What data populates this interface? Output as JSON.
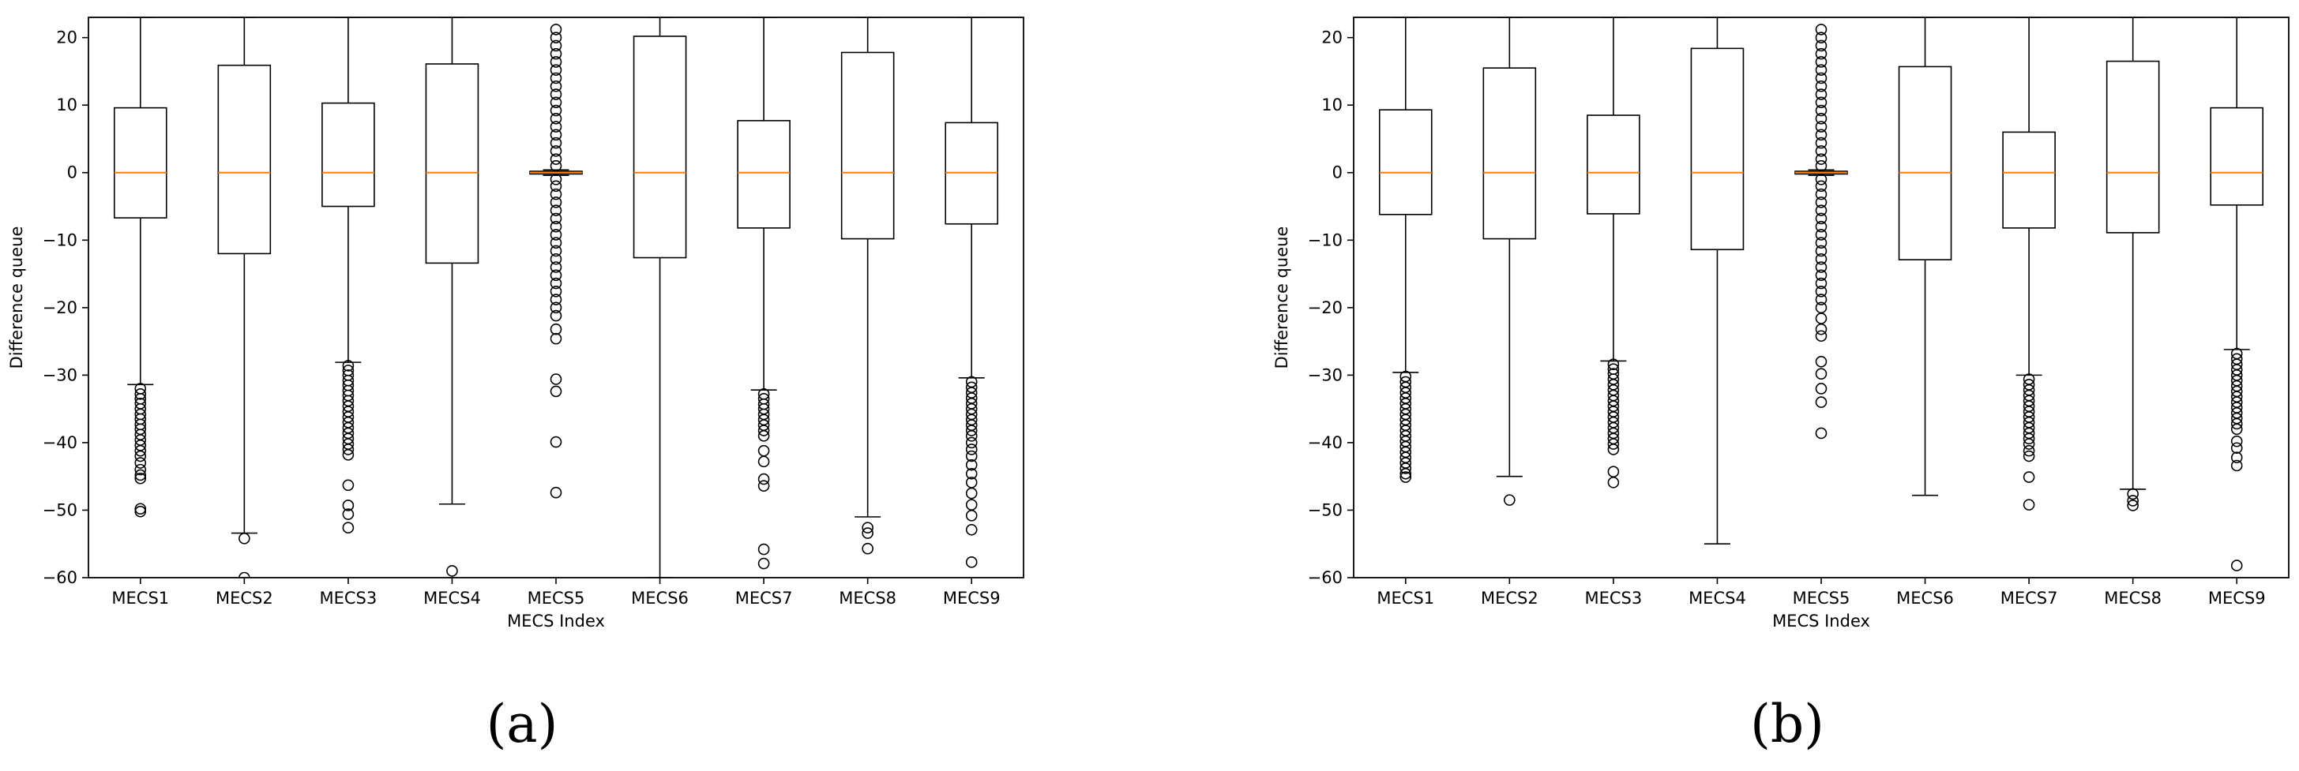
{
  "figure": {
    "panel_labels": [
      "(a)",
      "(b)"
    ]
  },
  "chart_data": [
    {
      "type": "boxplot",
      "panel": "(a)",
      "xlabel": "MECS Index",
      "ylabel": "Difference queue",
      "ylim": [
        -60,
        23
      ],
      "yticks": [
        20,
        10,
        0,
        -10,
        -20,
        -30,
        -40,
        -50,
        -60
      ],
      "categories": [
        "MECS1",
        "MECS2",
        "MECS3",
        "MECS4",
        "MECS5",
        "MECS6",
        "MECS7",
        "MECS8",
        "MECS9"
      ],
      "boxes": [
        {
          "label": "MECS1",
          "q1": -6.7,
          "median": 0,
          "q3": 9.6,
          "whisker_low": -31.4,
          "whisker_high": 23,
          "outliers": [
            -32,
            -32.8,
            -33.5,
            -34.2,
            -35,
            -35.8,
            -36.5,
            -37.3,
            -38,
            -38.8,
            -39.6,
            -40.4,
            -41.2,
            -42,
            -43,
            -44,
            -44.8,
            -45.3,
            -49.8,
            -50.2
          ]
        },
        {
          "label": "MECS2",
          "q1": -12,
          "median": 0,
          "q3": 15.9,
          "whisker_low": -53.4,
          "whisker_high": 23,
          "outliers": [
            -54.2,
            -60
          ]
        },
        {
          "label": "MECS3",
          "q1": -5,
          "median": 0,
          "q3": 10.3,
          "whisker_low": -28.1,
          "whisker_high": 23,
          "outliers": [
            -28.6,
            -29.3,
            -30,
            -30.8,
            -31.5,
            -32.3,
            -33,
            -33.8,
            -34.6,
            -35.4,
            -36.2,
            -37,
            -37.8,
            -38.6,
            -39.4,
            -40.2,
            -41,
            -41.8,
            -46.3,
            -49.3,
            -50.6,
            -52.6
          ]
        },
        {
          "label": "MECS4",
          "q1": -13.4,
          "median": 0,
          "q3": 16.1,
          "whisker_low": -49.1,
          "whisker_high": 23,
          "outliers": [
            -59
          ]
        },
        {
          "label": "MECS5",
          "q1": -0.2,
          "median": 0,
          "q3": 0.2,
          "whisker_low": -0.4,
          "whisker_high": 0.4,
          "outliers": [
            21.2,
            20,
            18.8,
            17.6,
            16.4,
            15.2,
            14,
            12.8,
            11.6,
            10.4,
            9.2,
            8,
            6.8,
            5.6,
            4.4,
            3.2,
            2,
            1,
            -1,
            -2,
            -3.2,
            -4.4,
            -5.6,
            -6.8,
            -8,
            -9.2,
            -10.4,
            -11.6,
            -12.8,
            -14,
            -15.2,
            -16.4,
            -17.6,
            -18.8,
            -20,
            -21.2,
            -23.2,
            -24.6,
            -30.6,
            -32.4,
            -39.9,
            -47.4
          ]
        },
        {
          "label": "MECS6",
          "q1": -12.6,
          "median": 0,
          "q3": 20.2,
          "whisker_low": -60,
          "whisker_high": 23,
          "outliers": []
        },
        {
          "label": "MECS7",
          "q1": -8.2,
          "median": 0,
          "q3": 7.7,
          "whisker_low": -32.2,
          "whisker_high": 23,
          "outliers": [
            -32.8,
            -33.5,
            -34.3,
            -35,
            -35.8,
            -36.6,
            -37.4,
            -38.2,
            -39,
            -41.2,
            -42.8,
            -45.4,
            -46.4,
            -55.8,
            -57.9
          ]
        },
        {
          "label": "MECS8",
          "q1": -9.8,
          "median": 0,
          "q3": 17.8,
          "whisker_low": -51,
          "whisker_high": 23,
          "outliers": [
            -52.6,
            -53.4,
            -55.7
          ]
        },
        {
          "label": "MECS9",
          "q1": -7.6,
          "median": 0,
          "q3": 7.4,
          "whisker_low": -30.4,
          "whisker_high": 23,
          "outliers": [
            -31,
            -31.8,
            -32.6,
            -33.4,
            -34.2,
            -35,
            -35.8,
            -36.6,
            -37.4,
            -38.2,
            -39,
            -40,
            -41,
            -42,
            -43.3,
            -44.6,
            -45.9,
            -47.5,
            -49.2,
            -50.8,
            -52.9,
            -57.7
          ]
        }
      ]
    },
    {
      "type": "boxplot",
      "panel": "(b)",
      "xlabel": "MECS Index",
      "ylabel": "Difference queue",
      "ylim": [
        -60,
        23
      ],
      "yticks": [
        20,
        10,
        0,
        -10,
        -20,
        -30,
        -40,
        -50,
        -60
      ],
      "categories": [
        "MECS1",
        "MECS2",
        "MECS3",
        "MECS4",
        "MECS5",
        "MECS6",
        "MECS7",
        "MECS8",
        "MECS9"
      ],
      "boxes": [
        {
          "label": "MECS1",
          "q1": -6.2,
          "median": 0,
          "q3": 9.3,
          "whisker_low": -29.6,
          "whisker_high": 23,
          "outliers": [
            -30.2,
            -31,
            -31.8,
            -32.6,
            -33.4,
            -34.2,
            -35,
            -35.8,
            -36.6,
            -37.4,
            -38.2,
            -39,
            -39.8,
            -40.6,
            -41.4,
            -42.2,
            -43,
            -43.8,
            -44.6,
            -45.1
          ]
        },
        {
          "label": "MECS2",
          "q1": -9.8,
          "median": 0,
          "q3": 15.5,
          "whisker_low": -45,
          "whisker_high": 23,
          "outliers": [
            -48.5
          ]
        },
        {
          "label": "MECS3",
          "q1": -6.1,
          "median": 0,
          "q3": 8.5,
          "whisker_low": -27.9,
          "whisker_high": 23,
          "outliers": [
            -28.4,
            -29.1,
            -29.8,
            -30.6,
            -31.4,
            -32.2,
            -33,
            -33.8,
            -34.6,
            -35.4,
            -36.2,
            -37,
            -37.8,
            -38.6,
            -39.4,
            -40.2,
            -41,
            -44.3,
            -45.9
          ]
        },
        {
          "label": "MECS4",
          "q1": -11.4,
          "median": 0,
          "q3": 18.4,
          "whisker_low": -55,
          "whisker_high": 23,
          "outliers": []
        },
        {
          "label": "MECS5",
          "q1": -0.2,
          "median": 0,
          "q3": 0.2,
          "whisker_low": -0.4,
          "whisker_high": 0.4,
          "outliers": [
            21.2,
            20,
            18.8,
            17.6,
            16.4,
            15.2,
            14,
            12.8,
            11.6,
            10.4,
            9.2,
            8,
            6.8,
            5.6,
            4.4,
            3.2,
            2,
            1,
            -1,
            -2,
            -3.2,
            -4.4,
            -5.6,
            -6.8,
            -8,
            -9.2,
            -10.4,
            -11.6,
            -12.8,
            -14,
            -15.2,
            -16.4,
            -17.6,
            -18.8,
            -20,
            -21.6,
            -23.2,
            -24.2,
            -28,
            -29.8,
            -32,
            -34,
            -38.6
          ]
        },
        {
          "label": "MECS6",
          "q1": -12.9,
          "median": 0,
          "q3": 15.7,
          "whisker_low": -47.8,
          "whisker_high": 23,
          "outliers": []
        },
        {
          "label": "MECS7",
          "q1": -8.2,
          "median": 0,
          "q3": 6,
          "whisker_low": -30,
          "whisker_high": 23,
          "outliers": [
            -30.6,
            -31.4,
            -32.2,
            -33,
            -33.8,
            -34.6,
            -35.4,
            -36.2,
            -37,
            -37.8,
            -38.6,
            -39.4,
            -40.2,
            -41.2,
            -42,
            -45.1,
            -49.2
          ]
        },
        {
          "label": "MECS8",
          "q1": -8.9,
          "median": 0,
          "q3": 16.5,
          "whisker_low": -46.9,
          "whisker_high": 23,
          "outliers": [
            -47.6,
            -48.6,
            -49.3
          ]
        },
        {
          "label": "MECS9",
          "q1": -4.8,
          "median": 0,
          "q3": 9.6,
          "whisker_low": -26.2,
          "whisker_high": 23,
          "outliers": [
            -26.8,
            -27.6,
            -28.4,
            -29.2,
            -30,
            -30.8,
            -31.6,
            -32.4,
            -33.2,
            -34,
            -34.8,
            -35.6,
            -36.4,
            -37.2,
            -38,
            -39.8,
            -40.8,
            -42.2,
            -43.4,
            -58.2
          ]
        }
      ]
    }
  ]
}
